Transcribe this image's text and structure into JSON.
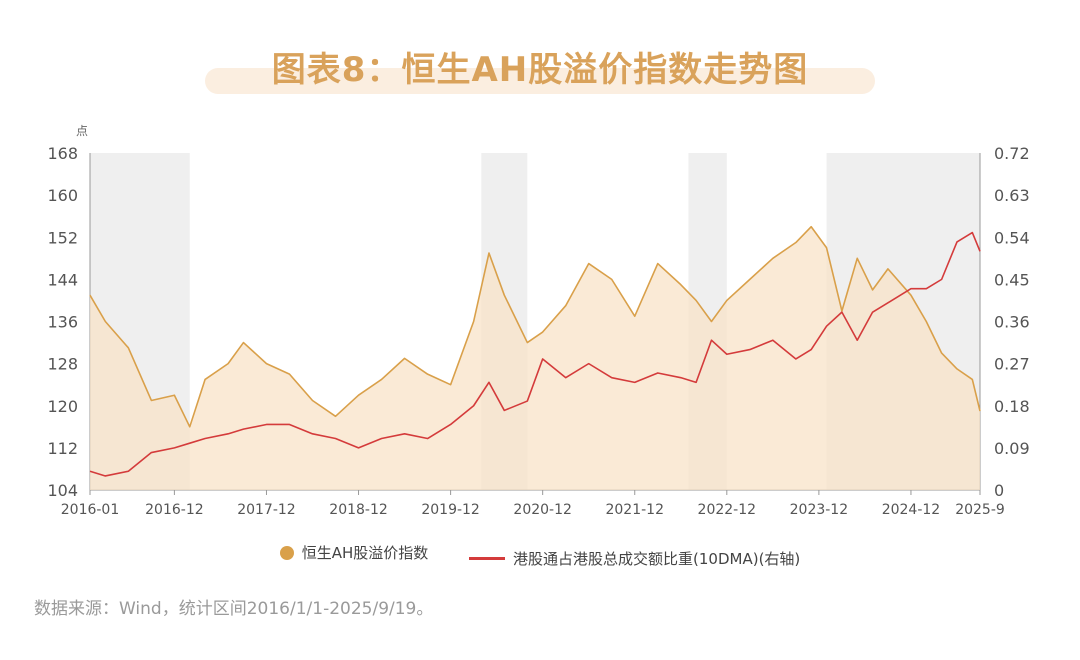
{
  "title": "图表8：恒生AH股溢价指数走势图",
  "source": "数据来源：Wind，统计区间2016/1/1-2025/9/19。",
  "colors": {
    "ah_line": "#d9a04a",
    "ah_fill": "#f8e3c8",
    "ratio_line": "#d43b3b",
    "shade": "#efefef",
    "title": "#d9a25b"
  },
  "chart_data": {
    "type": "line",
    "left_unit": "点",
    "x_range": [
      "2016-01",
      "2025-09"
    ],
    "x_ticks": [
      "2016-01",
      "2016-12",
      "2017-12",
      "2018-12",
      "2019-12",
      "2020-12",
      "2021-12",
      "2022-12",
      "2023-12",
      "2024-12",
      "2025-9"
    ],
    "y_left": {
      "min": 104,
      "max": 168,
      "ticks": [
        "104",
        "112",
        "120",
        "128",
        "136",
        "144",
        "152",
        "160",
        "168"
      ]
    },
    "y_right": {
      "min": 0,
      "max": 0.72,
      "ticks": [
        "0",
        "0.09",
        "0.18",
        "0.27",
        "0.36",
        "0.45",
        "0.54",
        "0.63",
        "0.72"
      ]
    },
    "shaded_periods": [
      [
        "2016-01",
        "2017-02"
      ],
      [
        "2020-04",
        "2020-10"
      ],
      [
        "2022-07",
        "2022-12"
      ],
      [
        "2024-01",
        "2025-09"
      ]
    ],
    "series": [
      {
        "name": "恒生AH股溢价指数",
        "axis": "left",
        "x": [
          "2016-01",
          "2016-03",
          "2016-06",
          "2016-09",
          "2016-12",
          "2017-02",
          "2017-04",
          "2017-07",
          "2017-09",
          "2017-12",
          "2018-03",
          "2018-06",
          "2018-09",
          "2018-12",
          "2019-03",
          "2019-06",
          "2019-09",
          "2019-12",
          "2020-03",
          "2020-05",
          "2020-07",
          "2020-10",
          "2020-12",
          "2021-03",
          "2021-06",
          "2021-09",
          "2021-12",
          "2022-03",
          "2022-06",
          "2022-08",
          "2022-10",
          "2022-12",
          "2023-03",
          "2023-06",
          "2023-09",
          "2023-11",
          "2024-01",
          "2024-03",
          "2024-05",
          "2024-07",
          "2024-09",
          "2024-12",
          "2025-02",
          "2025-04",
          "2025-06",
          "2025-08",
          "2025-09"
        ],
        "values": [
          141,
          136,
          131,
          121,
          122,
          116,
          125,
          128,
          132,
          128,
          126,
          121,
          118,
          122,
          125,
          129,
          126,
          124,
          136,
          149,
          141,
          132,
          134,
          139,
          147,
          144,
          137,
          147,
          143,
          140,
          136,
          140,
          144,
          148,
          151,
          154,
          150,
          138,
          148,
          142,
          146,
          141,
          136,
          130,
          127,
          125,
          119
        ]
      },
      {
        "name": "港股通占港股总成交额比重(10DMA)(右轴)",
        "axis": "right",
        "x": [
          "2016-01",
          "2016-03",
          "2016-06",
          "2016-09",
          "2016-12",
          "2017-02",
          "2017-04",
          "2017-07",
          "2017-09",
          "2017-12",
          "2018-03",
          "2018-06",
          "2018-09",
          "2018-12",
          "2019-03",
          "2019-06",
          "2019-09",
          "2019-12",
          "2020-03",
          "2020-05",
          "2020-07",
          "2020-10",
          "2020-12",
          "2021-03",
          "2021-06",
          "2021-09",
          "2021-12",
          "2022-03",
          "2022-06",
          "2022-08",
          "2022-10",
          "2022-12",
          "2023-03",
          "2023-06",
          "2023-09",
          "2023-11",
          "2024-01",
          "2024-03",
          "2024-05",
          "2024-07",
          "2024-09",
          "2024-12",
          "2025-02",
          "2025-04",
          "2025-06",
          "2025-08",
          "2025-09"
        ],
        "values": [
          0.04,
          0.03,
          0.04,
          0.08,
          0.09,
          0.1,
          0.11,
          0.12,
          0.13,
          0.14,
          0.14,
          0.12,
          0.11,
          0.09,
          0.11,
          0.12,
          0.11,
          0.14,
          0.18,
          0.23,
          0.17,
          0.19,
          0.28,
          0.24,
          0.27,
          0.24,
          0.23,
          0.25,
          0.24,
          0.23,
          0.32,
          0.29,
          0.3,
          0.32,
          0.28,
          0.3,
          0.35,
          0.38,
          0.32,
          0.38,
          0.4,
          0.43,
          0.43,
          0.45,
          0.53,
          0.55,
          0.51
        ]
      }
    ]
  }
}
